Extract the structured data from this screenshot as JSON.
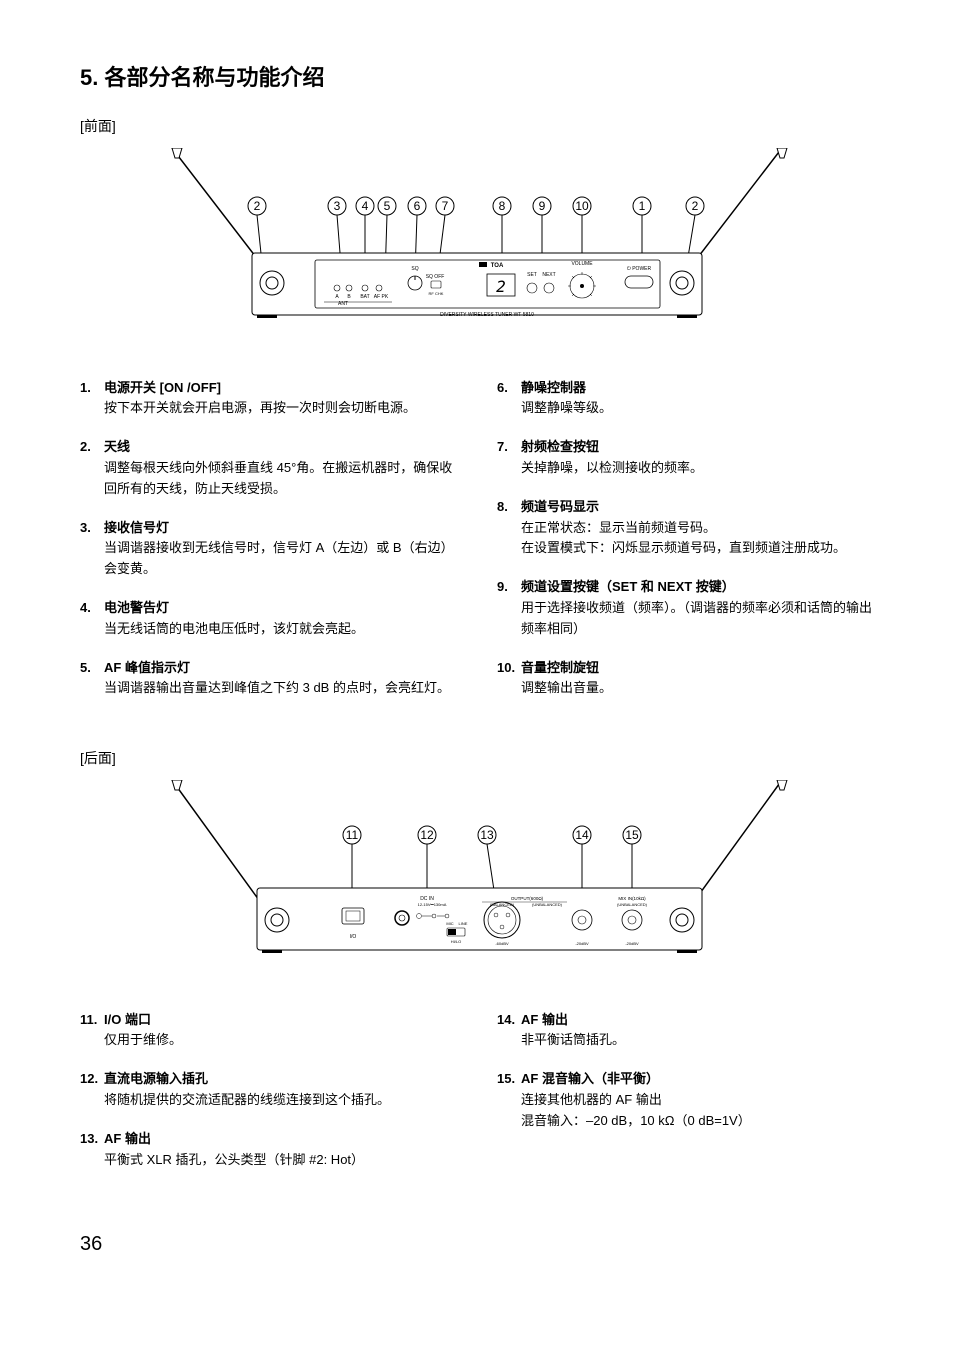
{
  "header": {
    "section_number": "5.",
    "section_title": "各部分名称与功能介绍"
  },
  "front_label": "[前面]",
  "rear_label": "[后面]",
  "front_callouts": [
    "2",
    "3",
    "4",
    "5",
    "6",
    "7",
    "8",
    "9",
    "10",
    "1",
    "2"
  ],
  "rear_callouts": [
    "11",
    "12",
    "13",
    "14",
    "15"
  ],
  "front_device": {
    "brand": "TOA",
    "model": "DIVERSITY WIRELESS TUNER WT-5810",
    "labels": {
      "ant_a": "A",
      "ant_b": "B",
      "ant": "ANT",
      "bat": "BAT",
      "af_pk": "AF PK",
      "sq": "SQ",
      "sq_off": "SQ OFF",
      "rf_chk": "RF CHK",
      "set": "SET",
      "next": "NEXT",
      "volume": "VOLUME",
      "power": "POWER"
    }
  },
  "rear_device": {
    "labels": {
      "io": "I/O",
      "dc_in": "DC IN",
      "dc_spec": "12-15V⎓130mA",
      "mic": "MIC",
      "line": "LINE",
      "hi": "HI",
      "output": "OUTPUT(600Ω)",
      "balanced": "(BALANCED)",
      "unbalanced": "(UNBALANCED)",
      "mix_in": "MIX IN(10kΩ)",
      "neg60": "-60dBV",
      "neg20a": "-20dBV",
      "neg20b": "-20dBV"
    }
  },
  "front_items_left": [
    {
      "num": "1.",
      "title": "电源开关 [ON /OFF]",
      "desc": "按下本开关就会开启电源，再按一次时则会切断电源。"
    },
    {
      "num": "2.",
      "title": "天线",
      "desc": "调整每根天线向外倾斜垂直线 45°角。在搬运机器时，确保收回所有的天线，防止天线受损。"
    },
    {
      "num": "3.",
      "title": "接收信号灯",
      "desc": "当调谐器接收到无线信号时，信号灯 A（左边）或 B（右边）会变黄。"
    },
    {
      "num": "4.",
      "title": "电池警告灯",
      "desc": "当无线话筒的电池电压低时，该灯就会亮起。"
    },
    {
      "num": "5.",
      "title": "AF 峰值指示灯",
      "desc": "当调谐器输出音量达到峰值之下约 3 dB 的点时，会亮红灯。"
    }
  ],
  "front_items_right": [
    {
      "num": "6.",
      "title": "静噪控制器",
      "desc": "调整静噪等级。"
    },
    {
      "num": "7.",
      "title": "射频检查按钮",
      "desc": "关掉静噪，以检测接收的频率。"
    },
    {
      "num": "8.",
      "title": "频道号码显示",
      "desc": "在正常状态：显示当前频道号码。\n在设置模式下：闪烁显示频道号码，直到频道注册成功。"
    },
    {
      "num": "9.",
      "title": "频道设置按键（SET 和 NEXT 按键）",
      "desc": "用于选择接收频道（频率）。（调谐器的频率必须和话筒的输出频率相同）"
    },
    {
      "num": "10.",
      "title": "音量控制旋钮",
      "desc": "调整输出音量。"
    }
  ],
  "rear_items_left": [
    {
      "num": "11.",
      "title": "I/O 端口",
      "desc": "仅用于维修。"
    },
    {
      "num": "12.",
      "title": "直流电源输入插孔",
      "desc": "将随机提供的交流适配器的线缆连接到这个插孔。"
    },
    {
      "num": "13.",
      "title": "AF 输出",
      "desc": "平衡式 XLR 插孔，公头类型（针脚 #2: Hot）"
    }
  ],
  "rear_items_right": [
    {
      "num": "14.",
      "title": "AF 输出",
      "desc": "非平衡话筒插孔。"
    },
    {
      "num": "15.",
      "title": "AF 混音输入（非平衡）",
      "desc": "连接其他机器的 AF 输出\n混音输入：–20 dB，10 kΩ（0 dB=1V）"
    }
  ],
  "page_number": "36",
  "colors": {
    "text": "#000000",
    "bg": "#ffffff",
    "line": "#000000"
  }
}
